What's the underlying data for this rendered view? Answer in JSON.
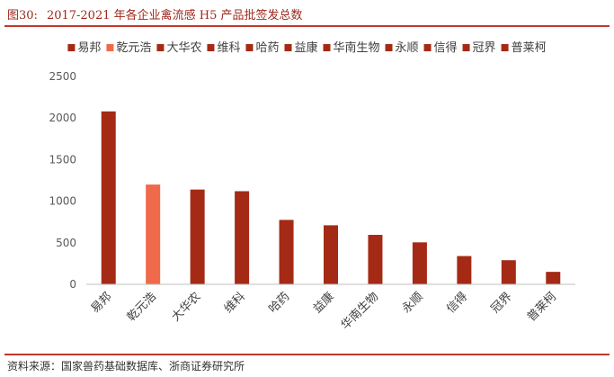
{
  "figure": {
    "label": "图30:",
    "title": "2017-2021 年各企业禽流感 H5 产品批签发总数",
    "source": "资料来源：国家兽药基础数据库、浙商证券研究所"
  },
  "colors": {
    "bar": "#a52a15",
    "highlight": "#ef6a4a",
    "rule": "#c0392b",
    "title": "#a0281b"
  },
  "chart_data": {
    "type": "bar",
    "categories": [
      "易邦",
      "乾元浩",
      "大华农",
      "维科",
      "哈药",
      "益康",
      "华南生物",
      "永顺",
      "信得",
      "冠界",
      "普莱柯"
    ],
    "values": [
      2080,
      1200,
      1140,
      1120,
      775,
      710,
      595,
      505,
      340,
      290,
      150
    ],
    "highlight_category": "乾元浩",
    "ylim": [
      0,
      2500
    ],
    "yticks": [
      "0",
      "500",
      "1000",
      "1500",
      "2000",
      "2500"
    ],
    "legend_position": "top",
    "grid": false
  }
}
